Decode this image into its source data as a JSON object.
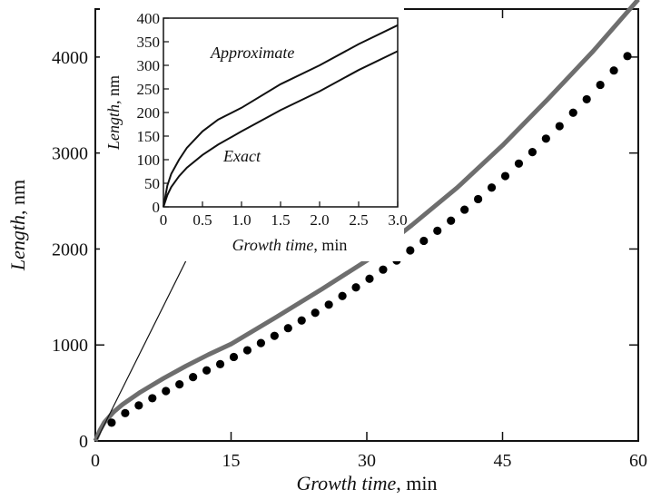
{
  "chart_data": [
    {
      "type": "line",
      "xlabel_italic": "Growth time",
      "xlabel_unit": ", min",
      "ylabel_italic": "Length",
      "ylabel_unit": ", nm",
      "xlim": [
        0,
        60
      ],
      "ylim": [
        0,
        4500
      ],
      "x_ticks": [
        0,
        15,
        30,
        45,
        60
      ],
      "x_tick_labels": [
        "0",
        "15",
        "30",
        "45",
        "60"
      ],
      "y_ticks": [
        0,
        1000,
        2000,
        3000,
        4000
      ],
      "y_tick_labels": [
        "0",
        "1000",
        "2000",
        "3000",
        "4000"
      ],
      "grid": false,
      "series": [
        {
          "style": "thick gray line",
          "color": "#6e6e6e",
          "x": [
            0,
            0.5,
            1,
            2,
            3,
            5,
            7.5,
            10,
            12.5,
            15,
            20,
            25,
            30,
            35,
            40,
            45,
            50,
            55,
            60
          ],
          "y": [
            0,
            110,
            195,
            300,
            380,
            510,
            650,
            780,
            900,
            1010,
            1290,
            1580,
            1880,
            2250,
            2640,
            3080,
            3560,
            4060,
            4600
          ]
        },
        {
          "style": "black dots",
          "color": "#000000",
          "x": [
            1.8,
            3.3,
            4.8,
            6.3,
            7.8,
            9.3,
            10.8,
            12.3,
            13.8,
            15.3,
            16.8,
            18.3,
            19.8,
            21.3,
            22.8,
            24.3,
            25.8,
            27.3,
            28.8,
            30.3,
            31.8,
            33.3,
            34.8,
            36.3,
            37.8,
            39.3,
            40.8,
            42.3,
            43.8,
            45.3,
            46.8,
            48.3,
            49.8,
            51.3,
            52.8,
            54.3,
            55.8,
            57.3,
            58.8
          ],
          "y": [
            190,
            290,
            370,
            445,
            520,
            590,
            665,
            735,
            800,
            875,
            945,
            1020,
            1095,
            1175,
            1255,
            1335,
            1420,
            1510,
            1600,
            1690,
            1785,
            1880,
            1985,
            2085,
            2190,
            2295,
            2410,
            2520,
            2640,
            2760,
            2890,
            3010,
            3150,
            3280,
            3420,
            3560,
            3710,
            3860,
            4010
          ]
        }
      ]
    },
    {
      "type": "line",
      "xlabel_italic": "Growth time",
      "xlabel_unit": ", min",
      "ylabel_italic": "Length",
      "ylabel_unit": ", nm",
      "xlim": [
        0,
        3.0
      ],
      "ylim": [
        0,
        400
      ],
      "x_ticks": [
        0,
        0.5,
        1.0,
        1.5,
        2.0,
        2.5,
        3.0
      ],
      "x_tick_labels": [
        "0",
        "0.5",
        "1.0",
        "1.5",
        "2.0",
        "2.5",
        "3.0"
      ],
      "y_ticks": [
        0,
        50,
        100,
        150,
        200,
        250,
        300,
        350,
        400
      ],
      "y_tick_labels": [
        "0",
        "50",
        "100",
        "150",
        "200",
        "250",
        "300",
        "350",
        "400"
      ],
      "grid": false,
      "series": [
        {
          "name": "Approximate",
          "color": "#111111",
          "x": [
            0,
            0.05,
            0.1,
            0.2,
            0.3,
            0.5,
            0.7,
            1.0,
            1.5,
            2.0,
            2.5,
            3.0
          ],
          "y": [
            0,
            45,
            70,
            100,
            125,
            160,
            185,
            210,
            260,
            300,
            345,
            385
          ]
        },
        {
          "name": "Exact",
          "color": "#111111",
          "x": [
            0,
            0.05,
            0.1,
            0.2,
            0.3,
            0.5,
            0.7,
            1.0,
            1.5,
            2.0,
            2.5,
            3.0
          ],
          "y": [
            0,
            25,
            42,
            65,
            83,
            110,
            132,
            160,
            205,
            245,
            290,
            330
          ]
        }
      ]
    }
  ]
}
